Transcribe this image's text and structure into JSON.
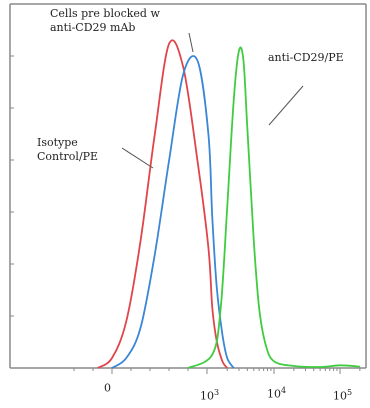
{
  "chart_data": {
    "type": "line",
    "title": "",
    "xlabel": "",
    "ylabel": "",
    "x_scale": "biexponential",
    "x_ticks": [
      {
        "base": "0",
        "exp": ""
      },
      {
        "base": "10",
        "exp": "3"
      },
      {
        "base": "10",
        "exp": "4"
      },
      {
        "base": "10",
        "exp": "5"
      }
    ],
    "grid": false,
    "legend": "none",
    "annotations": [
      {
        "id": "cd29_blocked",
        "lines": [
          "Cells pre blocked w",
          "anti-CD29 mAb"
        ]
      },
      {
        "id": "isotype",
        "lines": [
          "Isotype",
          "Control/PE"
        ]
      },
      {
        "id": "anti_cd29",
        "lines": [
          "anti-CD29/PE"
        ]
      }
    ],
    "series": [
      {
        "color": "#e0454b",
        "x": [
          -150,
          0,
          150,
          300,
          450,
          600,
          750,
          900,
          1050,
          1200,
          1400,
          1700,
          2000
        ],
        "y": [
          0,
          3,
          14,
          38,
          70,
          97,
          90,
          62,
          36,
          18,
          8,
          2,
          0
        ]
      },
      {
        "color": "#3b86d6",
        "x": [
          0,
          150,
          300,
          450,
          600,
          750,
          900,
          1050,
          1200,
          1400,
          1700,
          2000,
          2500
        ],
        "y": [
          0,
          3,
          12,
          34,
          62,
          88,
          92,
          70,
          45,
          24,
          10,
          3,
          0
        ]
      },
      {
        "color": "#3fcc3f",
        "x": [
          800,
          1200,
          1600,
          2000,
          2500,
          3000,
          3500,
          4000,
          5000,
          6000,
          7500,
          10000,
          20000,
          50000,
          100000,
          200000
        ],
        "y": [
          0,
          4,
          18,
          48,
          80,
          95,
          92,
          72,
          38,
          18,
          7,
          2,
          0.6,
          0.3,
          0.8,
          0.4
        ]
      }
    ]
  },
  "colors": {
    "axis": "#8a8a8a",
    "annotation_line": "#555555"
  }
}
